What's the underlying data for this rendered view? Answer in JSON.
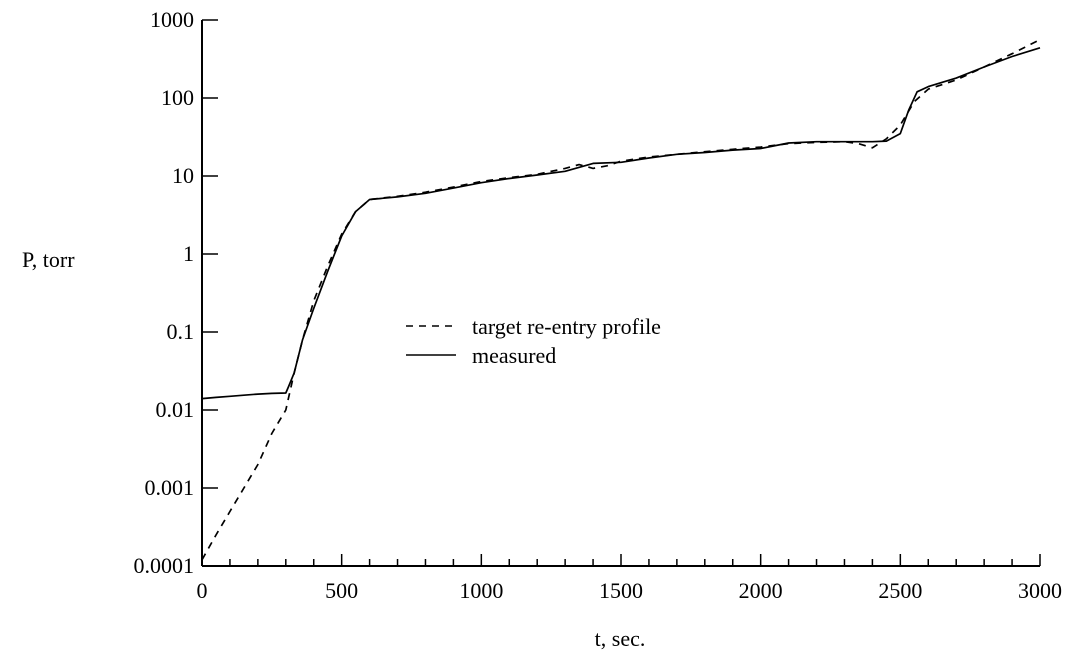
{
  "chart_data": {
    "type": "line",
    "xlabel": "t, sec.",
    "ylabel": "P, torr",
    "xlim": [
      0,
      3000
    ],
    "ylim": [
      0.0001,
      1000
    ],
    "yscale": "log",
    "grid": false,
    "legend_position": "center",
    "x_ticks": [
      "0",
      "500",
      "1000",
      "1500",
      "2000",
      "2500",
      "3000"
    ],
    "y_ticks": [
      "0.0001",
      "0.001",
      "0.01",
      "0.1",
      "1",
      "10",
      "100",
      "1000"
    ],
    "colors": {
      "line": "#000000",
      "axes": "#000000"
    },
    "series": [
      {
        "name": "target re-entry profile",
        "style": "dashed",
        "x": [
          0,
          50,
          100,
          150,
          200,
          250,
          300,
          330,
          360,
          400,
          450,
          500,
          550,
          600,
          700,
          800,
          900,
          1000,
          1100,
          1200,
          1300,
          1350,
          1400,
          1450,
          1500,
          1600,
          1700,
          1800,
          1900,
          2000,
          2100,
          2200,
          2300,
          2350,
          2400,
          2450,
          2500,
          2550,
          2600,
          2700,
          2800,
          2900,
          3000
        ],
        "y": [
          0.00012,
          0.00025,
          0.0005,
          0.001,
          0.002,
          0.005,
          0.01,
          0.03,
          0.08,
          0.25,
          0.7,
          1.8,
          3.5,
          5.0,
          5.5,
          6.2,
          7.2,
          8.5,
          9.5,
          10.5,
          12.5,
          14,
          12.5,
          13.5,
          15.5,
          17.5,
          19,
          20.5,
          22,
          23.5,
          26,
          27,
          27.5,
          26,
          23,
          30,
          45,
          90,
          130,
          170,
          250,
          370,
          560
        ]
      },
      {
        "name": "measured",
        "style": "solid",
        "x": [
          0,
          50,
          100,
          150,
          200,
          250,
          300,
          310,
          330,
          360,
          400,
          450,
          500,
          550,
          600,
          700,
          800,
          900,
          1000,
          1100,
          1200,
          1300,
          1400,
          1500,
          1600,
          1700,
          1800,
          1900,
          2000,
          2100,
          2200,
          2300,
          2400,
          2450,
          2500,
          2530,
          2560,
          2600,
          2700,
          2800,
          2900,
          3000
        ],
        "y": [
          0.014,
          0.0145,
          0.015,
          0.0155,
          0.016,
          0.0163,
          0.0165,
          0.02,
          0.03,
          0.08,
          0.2,
          0.6,
          1.7,
          3.5,
          5.0,
          5.4,
          6.0,
          7.0,
          8.2,
          9.3,
          10.3,
          11.5,
          14.5,
          15.0,
          17.0,
          19.0,
          20.0,
          21.5,
          22.5,
          26.5,
          27.5,
          27.5,
          27.5,
          28,
          35,
          70,
          120,
          140,
          180,
          250,
          340,
          440
        ]
      }
    ]
  }
}
